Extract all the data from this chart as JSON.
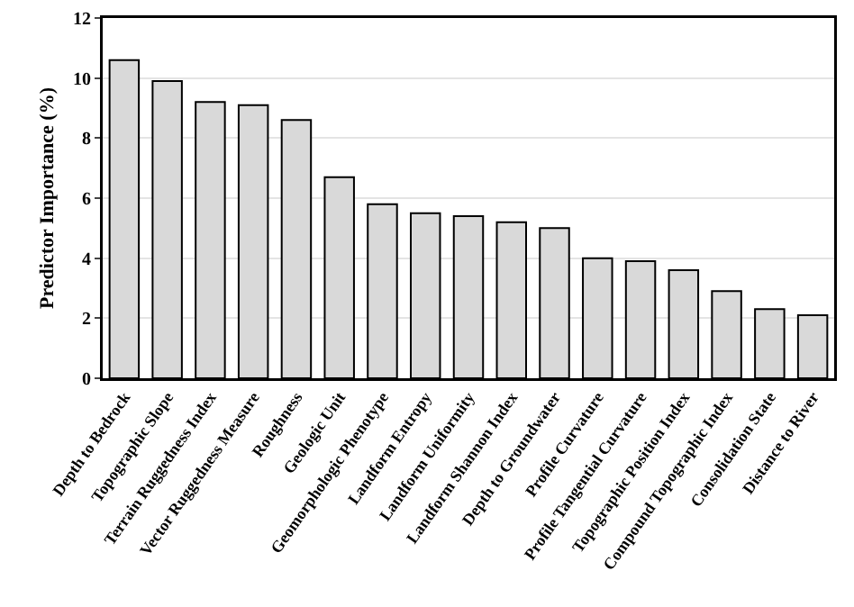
{
  "chart_data": {
    "type": "bar",
    "ylabel": "Predictor Importance (%)",
    "categories": [
      "Depth to Bedrock",
      "Topographic Slope",
      "Terrain Ruggedness Index",
      "Vector Ruggedness Measure",
      "Roughness",
      "Geologic Unit",
      "Geomorphologic Phenotype",
      "Landform Entropy",
      "Landform Uniformity",
      "Landform Shannon Index",
      "Depth to Groundwater",
      "Profile Curvature",
      "Profile Tangential Curvature",
      "Topographic Position Index",
      "Compound Topographic Index",
      "Consolidation State",
      "Distance to River"
    ],
    "values": [
      10.6,
      9.9,
      9.2,
      9.1,
      8.6,
      6.7,
      5.8,
      5.5,
      5.4,
      5.2,
      5.0,
      4.0,
      3.9,
      3.6,
      2.9,
      2.3,
      2.1
    ],
    "color": "#d9d9d9",
    "ylim": [
      0,
      12
    ],
    "yticks": [
      0,
      2,
      4,
      6,
      8,
      10,
      12
    ],
    "grid": "y"
  }
}
